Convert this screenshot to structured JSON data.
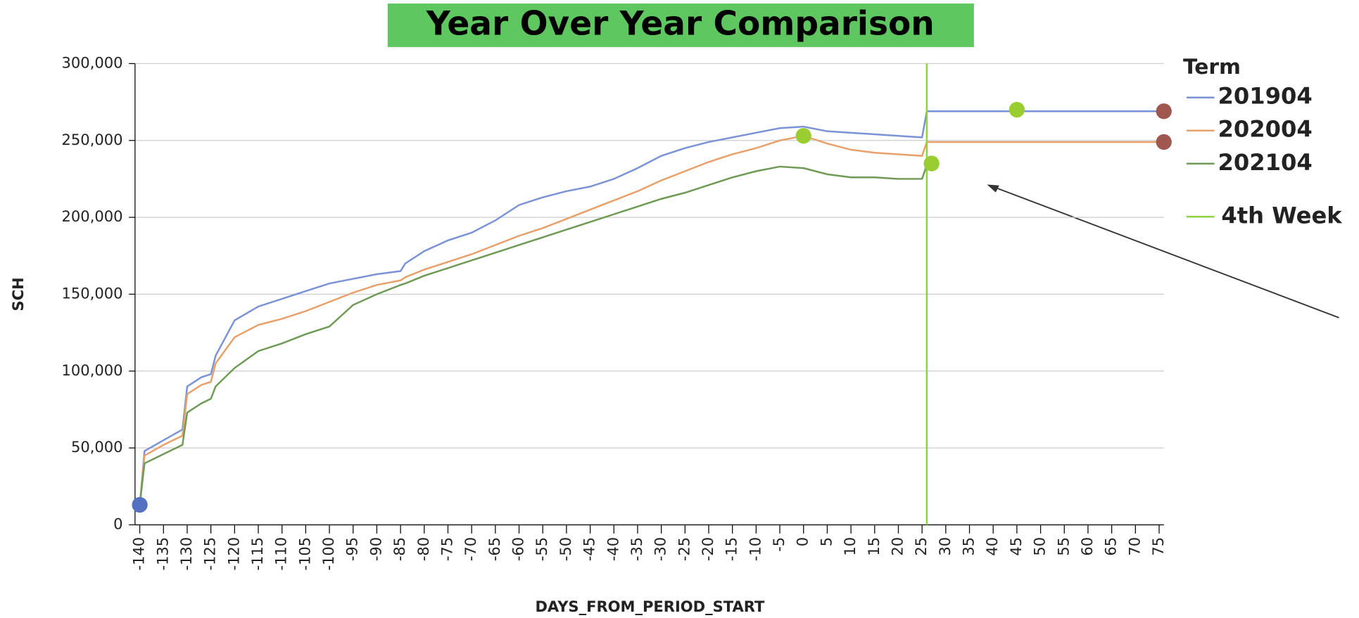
{
  "chart_data": {
    "type": "line",
    "title": "Year Over Year Comparison",
    "xlabel": "DAYS_FROM_PERIOD_START",
    "ylabel": "SCH",
    "legend_title": "Term",
    "legend": "right",
    "grid": true,
    "x": [
      -140,
      -139,
      -135,
      -131,
      -130,
      -127,
      -125,
      -124,
      -120,
      -115,
      -110,
      -105,
      -100,
      -95,
      -90,
      -85,
      -84,
      -80,
      -75,
      -70,
      -65,
      -60,
      -55,
      -50,
      -45,
      -40,
      -35,
      -30,
      -25,
      -20,
      -15,
      -10,
      -5,
      0,
      5,
      10,
      15,
      20,
      25,
      26,
      75
    ],
    "series": [
      {
        "name": "201904",
        "color": "#7b93d6",
        "values": [
          13000,
          48000,
          55000,
          62000,
          90000,
          96000,
          98000,
          110000,
          133000,
          142000,
          147000,
          152000,
          157000,
          160000,
          163000,
          165000,
          170000,
          178000,
          185000,
          190000,
          198000,
          208000,
          213000,
          217000,
          220000,
          225000,
          232000,
          240000,
          245000,
          249000,
          252000,
          255000,
          258000,
          259000,
          256000,
          255000,
          254000,
          253000,
          252000,
          269000,
          269000
        ]
      },
      {
        "name": "202004",
        "color": "#e8a06a",
        "values": [
          13000,
          45000,
          52000,
          58000,
          85000,
          91000,
          93000,
          105000,
          122000,
          130000,
          134000,
          139000,
          145000,
          151000,
          156000,
          159000,
          161000,
          166000,
          171000,
          176000,
          182000,
          188000,
          193000,
          199000,
          205000,
          211000,
          217000,
          224000,
          230000,
          236000,
          241000,
          245000,
          250000,
          253000,
          248000,
          244000,
          242000,
          241000,
          240000,
          249000,
          249000
        ]
      },
      {
        "name": "202104",
        "color": "#6e9a55",
        "values": [
          13000,
          40000,
          46000,
          52000,
          73000,
          79000,
          82000,
          90000,
          102000,
          113000,
          118000,
          124000,
          129000,
          143000,
          150000,
          156000,
          157000,
          162000,
          167000,
          172000,
          177000,
          182000,
          187000,
          192000,
          197000,
          202000,
          207000,
          212000,
          216000,
          221000,
          226000,
          230000,
          233000,
          232000,
          228000,
          226000,
          226000,
          225000,
          225000,
          234000,
          null
        ]
      }
    ],
    "reference_line": {
      "name": "4th Week",
      "x": 26,
      "color": "#8fd13f"
    },
    "points": [
      {
        "x": -140,
        "y": 13000,
        "color": "#5470c0"
      },
      {
        "x": 0,
        "y": 253000,
        "color": "#9acd32"
      },
      {
        "x": 27,
        "y": 235000,
        "color": "#9acd32"
      },
      {
        "x": 45,
        "y": 270000,
        "color": "#9acd32"
      },
      {
        "x": 76,
        "y": 269000,
        "color": "#a0574f"
      },
      {
        "x": 76,
        "y": 249000,
        "color": "#a0574f"
      }
    ],
    "xlim": [
      -141,
      76
    ],
    "xticks": [
      -140,
      -135,
      -130,
      -125,
      -120,
      -115,
      -110,
      -105,
      -100,
      -95,
      -90,
      -85,
      -80,
      -75,
      -70,
      -65,
      -60,
      -55,
      -50,
      -45,
      -40,
      -35,
      -30,
      -25,
      -20,
      -15,
      -10,
      -5,
      0,
      5,
      10,
      15,
      20,
      25,
      30,
      35,
      40,
      45,
      50,
      55,
      60,
      65,
      70,
      75
    ],
    "ylim": [
      0,
      300000
    ],
    "yticks": [
      0,
      {
        "value": 50000,
        "label": "50,000"
      },
      {
        "value": 100000,
        "label": "100,000"
      },
      {
        "value": 150000,
        "label": "150,000"
      },
      {
        "value": 200000,
        "label": "200,000"
      },
      {
        "value": 250000,
        "label": "250,000"
      },
      {
        "value": 300000,
        "label": "300,000"
      }
    ]
  }
}
